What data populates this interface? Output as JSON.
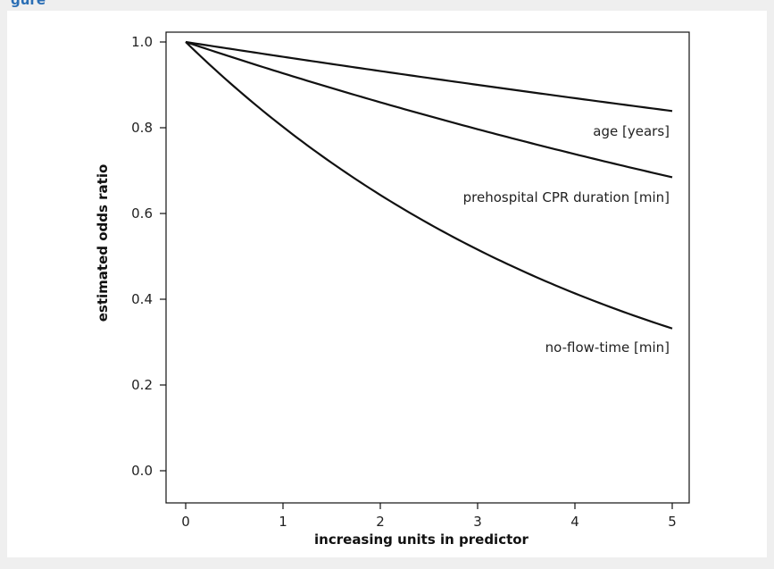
{
  "header": {
    "text": "gure"
  },
  "chart_data": {
    "type": "line",
    "title": "",
    "xlabel": "increasing units in predictor",
    "ylabel": "estimated odds ratio",
    "xlim": [
      0,
      5
    ],
    "ylim": [
      0,
      1
    ],
    "xticks": [
      "0",
      "1",
      "2",
      "3",
      "4",
      "5"
    ],
    "yticks": [
      "0.0",
      "0.2",
      "0.4",
      "0.6",
      "0.8",
      "1.0"
    ],
    "grid": false,
    "legend": "none",
    "series": [
      {
        "name": "age [years]",
        "odds_ratio_per_unit": 0.9655,
        "x": [
          0,
          1,
          2,
          3,
          4,
          5
        ],
        "values": [
          1.0,
          0.966,
          0.932,
          0.9,
          0.869,
          0.839
        ]
      },
      {
        "name": "prehospital CPR duration [min]",
        "odds_ratio_per_unit": 0.927,
        "x": [
          0,
          1,
          2,
          3,
          4,
          5
        ],
        "values": [
          1.0,
          0.927,
          0.859,
          0.797,
          0.738,
          0.685
        ]
      },
      {
        "name": "no-flow-time [min]",
        "odds_ratio_per_unit": 0.802,
        "x": [
          0,
          1,
          2,
          3,
          4,
          5
        ],
        "values": [
          1.0,
          0.802,
          0.643,
          0.516,
          0.414,
          0.332
        ]
      }
    ]
  }
}
